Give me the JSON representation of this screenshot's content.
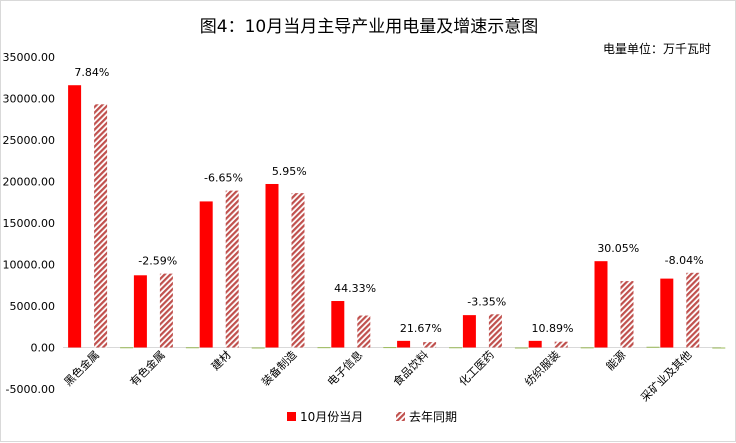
{
  "chart_data": {
    "type": "bar",
    "title": "图4：10月当月主导产业用电量及增速示意图",
    "unit_label": "电量单位：万千瓦时",
    "categories": [
      "黑色金属",
      "有色金属",
      "建材",
      "装备制造",
      "电子信息",
      "食品饮料",
      "化工医药",
      "纺织服装",
      "能源",
      "采矿业及其他"
    ],
    "series": [
      {
        "name": "10月份当月",
        "values": [
          31600,
          8700,
          17600,
          19700,
          5600,
          800,
          3900,
          800,
          10400,
          8300
        ],
        "color": "#ff0000"
      },
      {
        "name": "去年同期",
        "values": [
          29300,
          8900,
          18900,
          18600,
          3850,
          650,
          4000,
          700,
          8000,
          9000
        ],
        "color": "#c0504d",
        "pattern": "diagonal-stripes"
      },
      {
        "name": "",
        "values": [
          30,
          30,
          -30,
          40,
          50,
          30,
          -30,
          20,
          90,
          -80
        ],
        "color": "#9bbb59"
      }
    ],
    "growth_labels": [
      "7.84%",
      "-2.59%",
      "-6.65%",
      "5.95%",
      "44.33%",
      "21.67%",
      "-3.35%",
      "10.89%",
      "30.05%",
      "-8.04%"
    ],
    "y_ticks": [
      "35000.00",
      "30000.00",
      "25000.00",
      "20000.00",
      "15000.00",
      "10000.00",
      "5000.00",
      "0.00",
      "-5000.00"
    ],
    "ylim": [
      -5000,
      35000
    ],
    "grid": false,
    "legend_position": "bottom",
    "legend": [
      "10月份当月",
      "去年同期"
    ]
  }
}
